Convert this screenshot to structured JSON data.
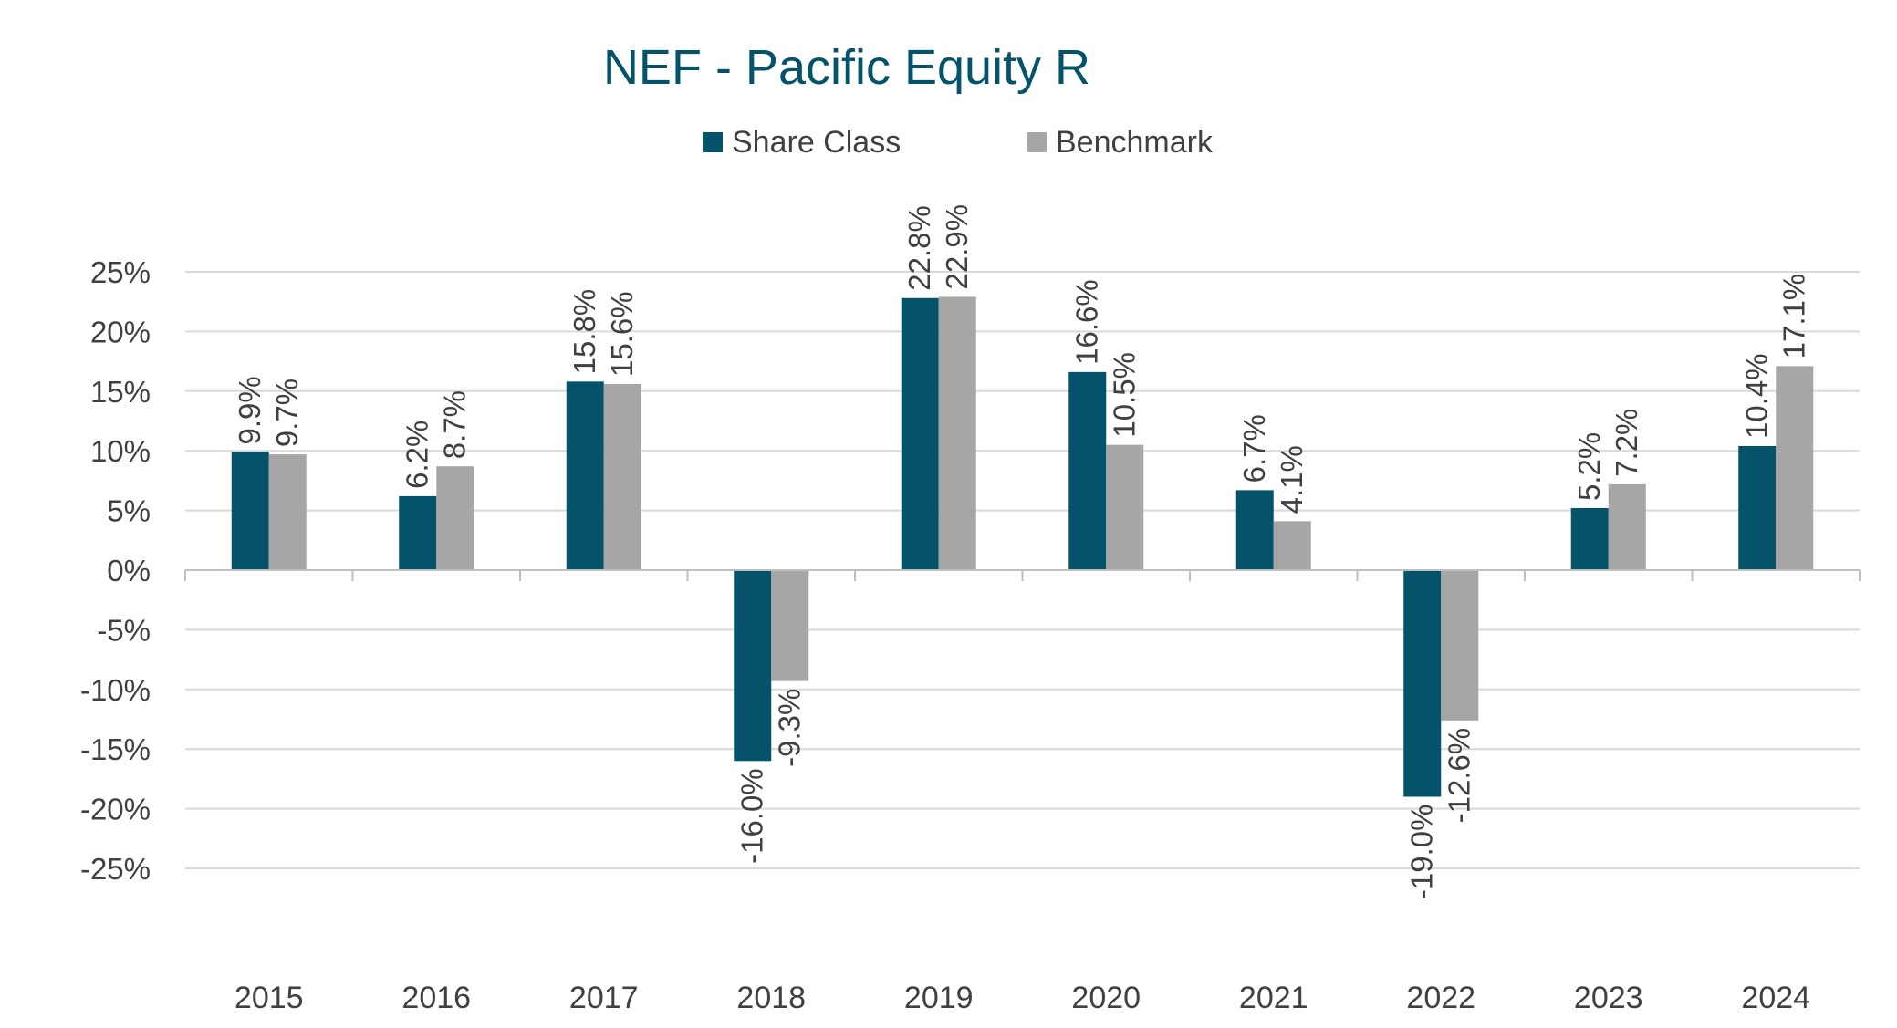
{
  "chart_data": {
    "type": "bar",
    "title": "NEF - Pacific Equity R",
    "categories": [
      "2015",
      "2016",
      "2017",
      "2018",
      "2019",
      "2020",
      "2021",
      "2022",
      "2023",
      "2024"
    ],
    "series": [
      {
        "name": "Share Class",
        "color": "#04536A",
        "values": [
          9.9,
          6.2,
          15.8,
          -16.0,
          22.8,
          16.6,
          6.7,
          -19.0,
          5.2,
          10.4
        ],
        "labels": [
          "9.9%",
          "6.2%",
          "15.8%",
          "-16.0%",
          "22.8%",
          "16.6%",
          "6.7%",
          "-19.0%",
          "5.2%",
          "10.4%"
        ]
      },
      {
        "name": "Benchmark",
        "color": "#A6A6A6",
        "values": [
          9.7,
          8.7,
          15.6,
          -9.3,
          22.9,
          10.5,
          4.1,
          -12.6,
          7.2,
          17.1
        ],
        "labels": [
          "9.7%",
          "8.7%",
          "15.6%",
          "-9.3%",
          "22.9%",
          "10.5%",
          "4.1%",
          "-12.6%",
          "7.2%",
          "17.1%"
        ]
      }
    ],
    "y_ticks": [
      25,
      20,
      15,
      10,
      5,
      0,
      -5,
      -10,
      -15,
      -20,
      -25
    ],
    "y_tick_labels": [
      "25%",
      "20%",
      "15%",
      "10%",
      "5%",
      "0%",
      "-5%",
      "-10%",
      "-15%",
      "-20%",
      "-25%"
    ],
    "ylim": [
      -25,
      25
    ],
    "xlabel": "",
    "ylabel": "",
    "grid": true,
    "legend_position": "top-center",
    "colors": {
      "title": "#04536A",
      "text": "#404040",
      "grid": "#D9D9D9",
      "axis": "#BFBFBF"
    }
  }
}
